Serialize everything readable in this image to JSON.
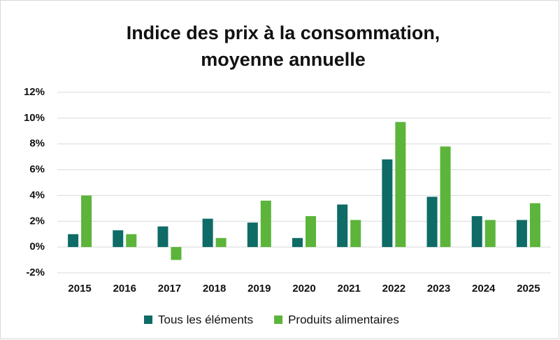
{
  "chart_data": {
    "type": "bar",
    "title": [
      "Indice des prix à la consommation,",
      "moyenne annuelle"
    ],
    "categories": [
      "2015",
      "2016",
      "2017",
      "2018",
      "2019",
      "2020",
      "2021",
      "2022",
      "2023",
      "2024",
      "2025"
    ],
    "series": [
      {
        "name": "Tous les éléments",
        "color": "#0e6b66",
        "values": [
          1.0,
          1.3,
          1.6,
          2.2,
          1.9,
          0.7,
          3.3,
          6.8,
          3.9,
          2.4,
          2.1
        ]
      },
      {
        "name": "Produits alimentaires",
        "color": "#5cb43b",
        "values": [
          4.0,
          1.0,
          -1.0,
          0.7,
          3.6,
          2.4,
          2.1,
          9.7,
          7.8,
          2.1,
          3.4
        ]
      }
    ],
    "ylim": [
      -2,
      12
    ],
    "yticks": [
      {
        "value": -2,
        "label": "-2%"
      },
      {
        "value": 0,
        "label": "0%"
      },
      {
        "value": 2,
        "label": "2%"
      },
      {
        "value": 4,
        "label": "4%"
      },
      {
        "value": 6,
        "label": "6%"
      },
      {
        "value": 8,
        "label": "8%"
      },
      {
        "value": 10,
        "label": "10%"
      },
      {
        "value": 12,
        "label": "12%"
      }
    ],
    "grid": true
  }
}
